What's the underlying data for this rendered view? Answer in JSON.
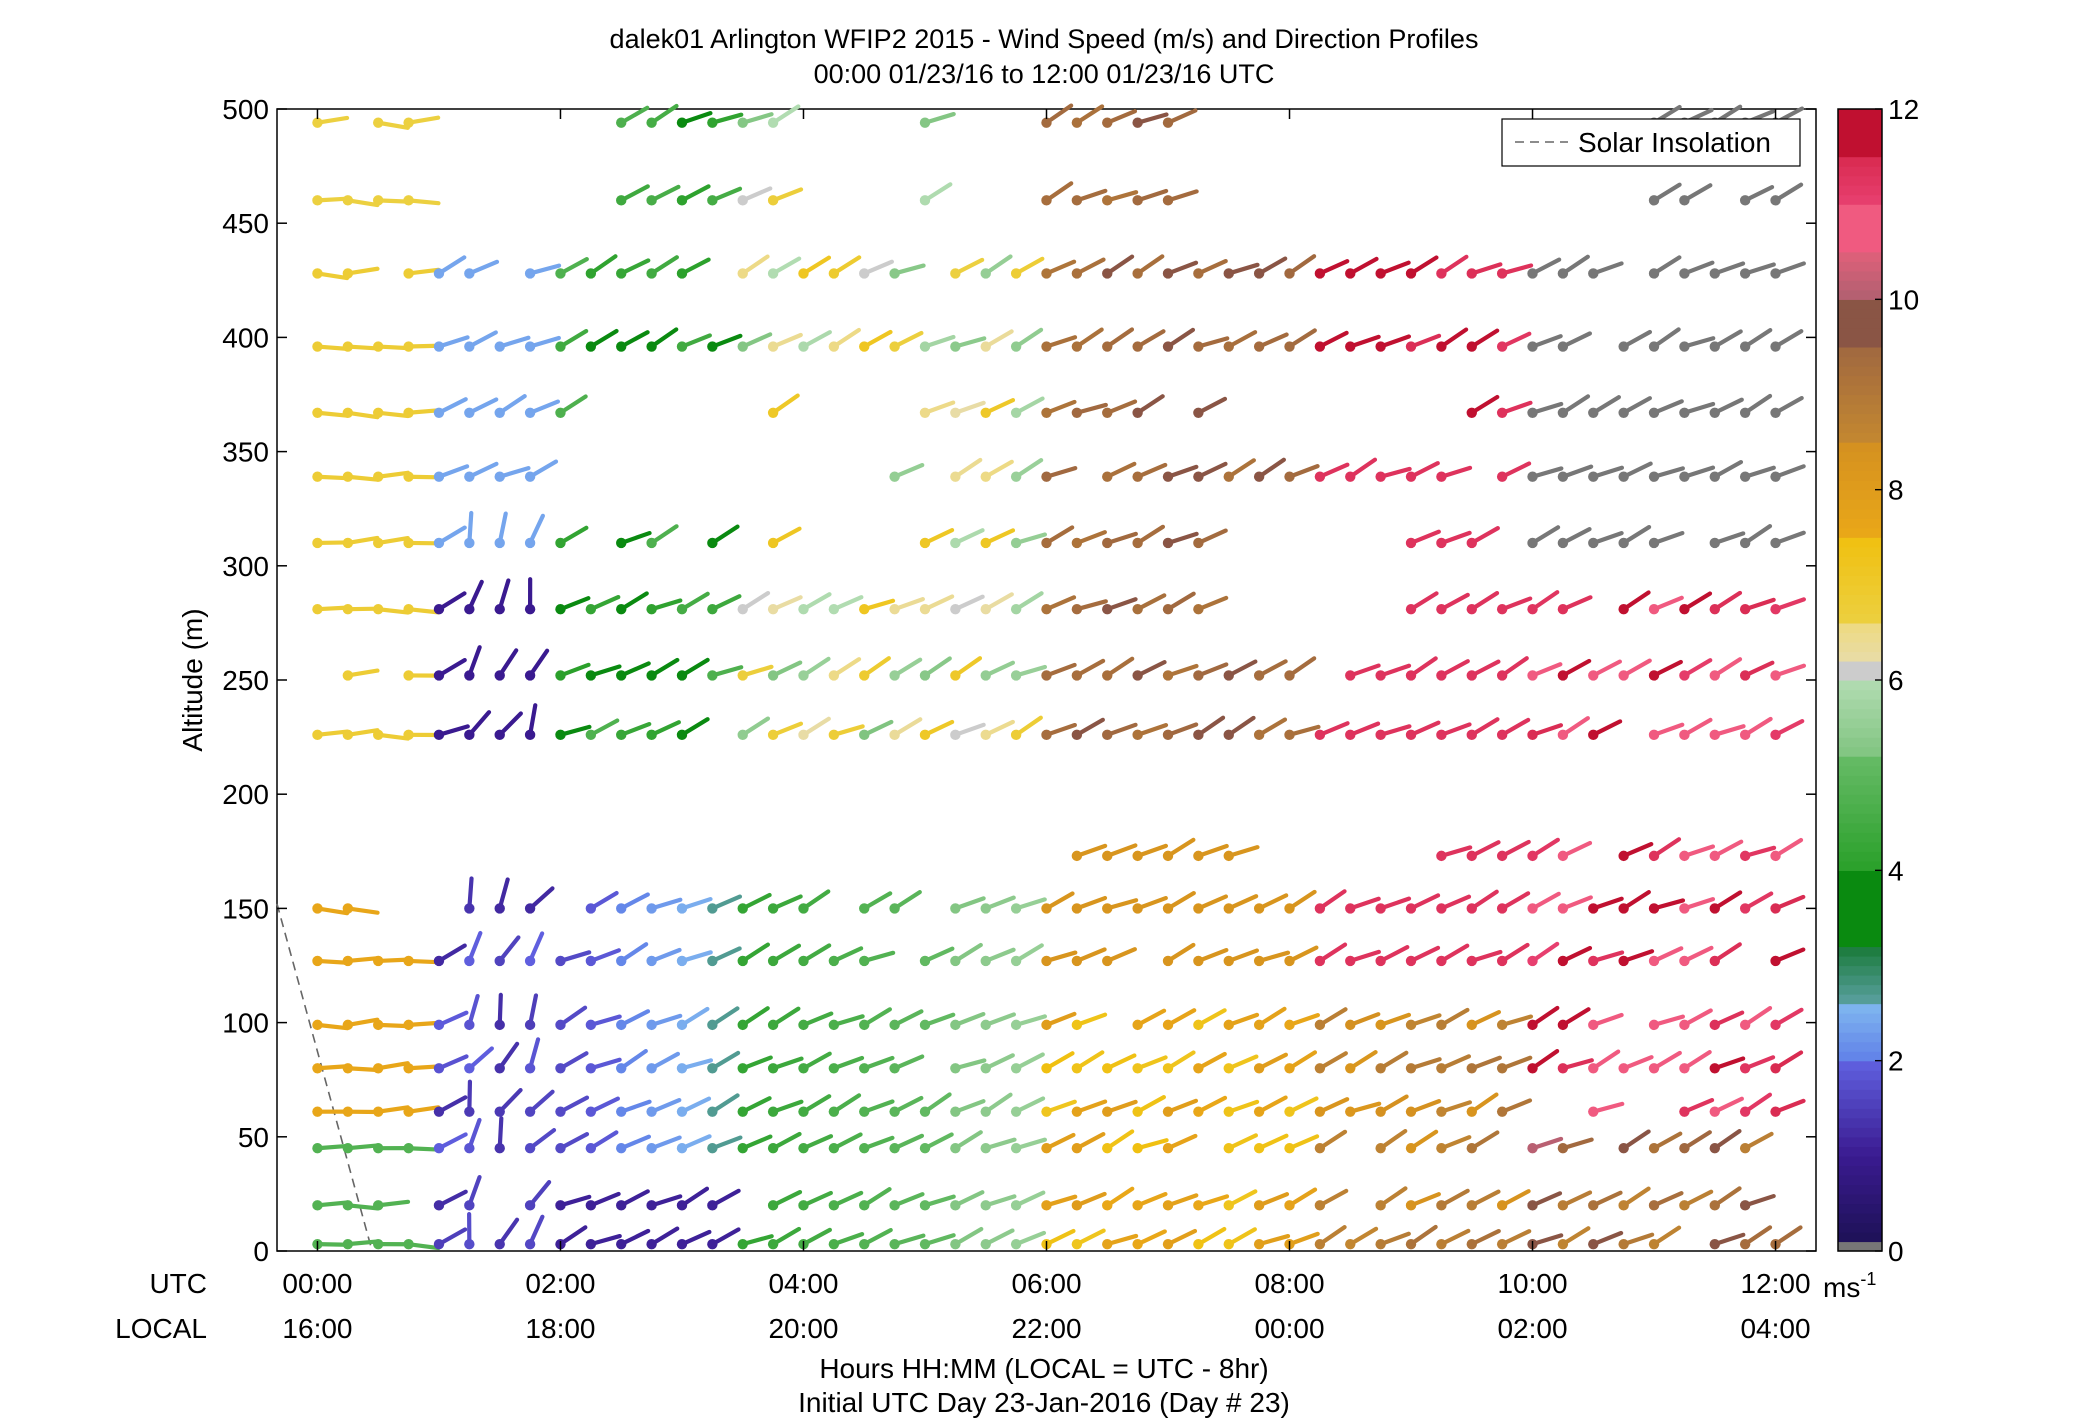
{
  "chart_data": {
    "type": "wind-barb-profile",
    "title": "dalek01 Arlington WFIP2 2015 - Wind Speed (m/s) and Direction Profiles",
    "subtitle": "00:00 01/23/16 to 12:00 01/23/16  UTC",
    "ylabel": "Altitude (m)",
    "xlabel": "Hours HH:MM  (LOCAL = UTC - 8hr)",
    "xlabel2": "Initial UTC Day 23-Jan-2016 (Day # 23)",
    "row_label_utc": "UTC",
    "row_label_local": "LOCAL",
    "ylim": [
      0,
      500
    ],
    "yticks": [
      "0",
      "50",
      "100",
      "150",
      "200",
      "250",
      "300",
      "350",
      "400",
      "450",
      "500"
    ],
    "xlim": [
      -0.333,
      12.333
    ],
    "xticks_utc": [
      "00:00",
      "02:00",
      "04:00",
      "06:00",
      "08:00",
      "10:00",
      "12:00"
    ],
    "xticks_local": [
      "16:00",
      "18:00",
      "20:00",
      "22:00",
      "00:00",
      "02:00",
      "04:00"
    ],
    "legend": {
      "label": "Solar Insolation",
      "placement": "top-right",
      "style": "dashed",
      "color": "#777777"
    },
    "solar_insolation": {
      "x": [
        -0.333,
        0.45
      ],
      "y": [
        152,
        0
      ]
    },
    "colorbar": {
      "ticks": [
        "0",
        "2",
        "4",
        "6",
        "8",
        "10",
        "12"
      ],
      "unit": "ms",
      "unit_sup": "-1",
      "range": [
        0,
        12
      ]
    },
    "altitudes": [
      3,
      20,
      45,
      61,
      80,
      99,
      127,
      150,
      173,
      226,
      252,
      281,
      310,
      339,
      367,
      396,
      428,
      460,
      494
    ],
    "times_hours": [
      0,
      0.25,
      0.5,
      0.75,
      1,
      1.25,
      1.5,
      1.75,
      2,
      2.25,
      2.5,
      2.75,
      3,
      3.25,
      3.5,
      3.75,
      4,
      4.25,
      4.5,
      4.75,
      5,
      5.25,
      5.5,
      5.75,
      6,
      6.25,
      6.5,
      6.75,
      7,
      7.25,
      7.5,
      7.75,
      8,
      8.25,
      8.5,
      8.75,
      9,
      9.25,
      9.5,
      9.75,
      10,
      10.25,
      10.5,
      10.75,
      11,
      11.25,
      11.5,
      11.75,
      12
    ]
  }
}
